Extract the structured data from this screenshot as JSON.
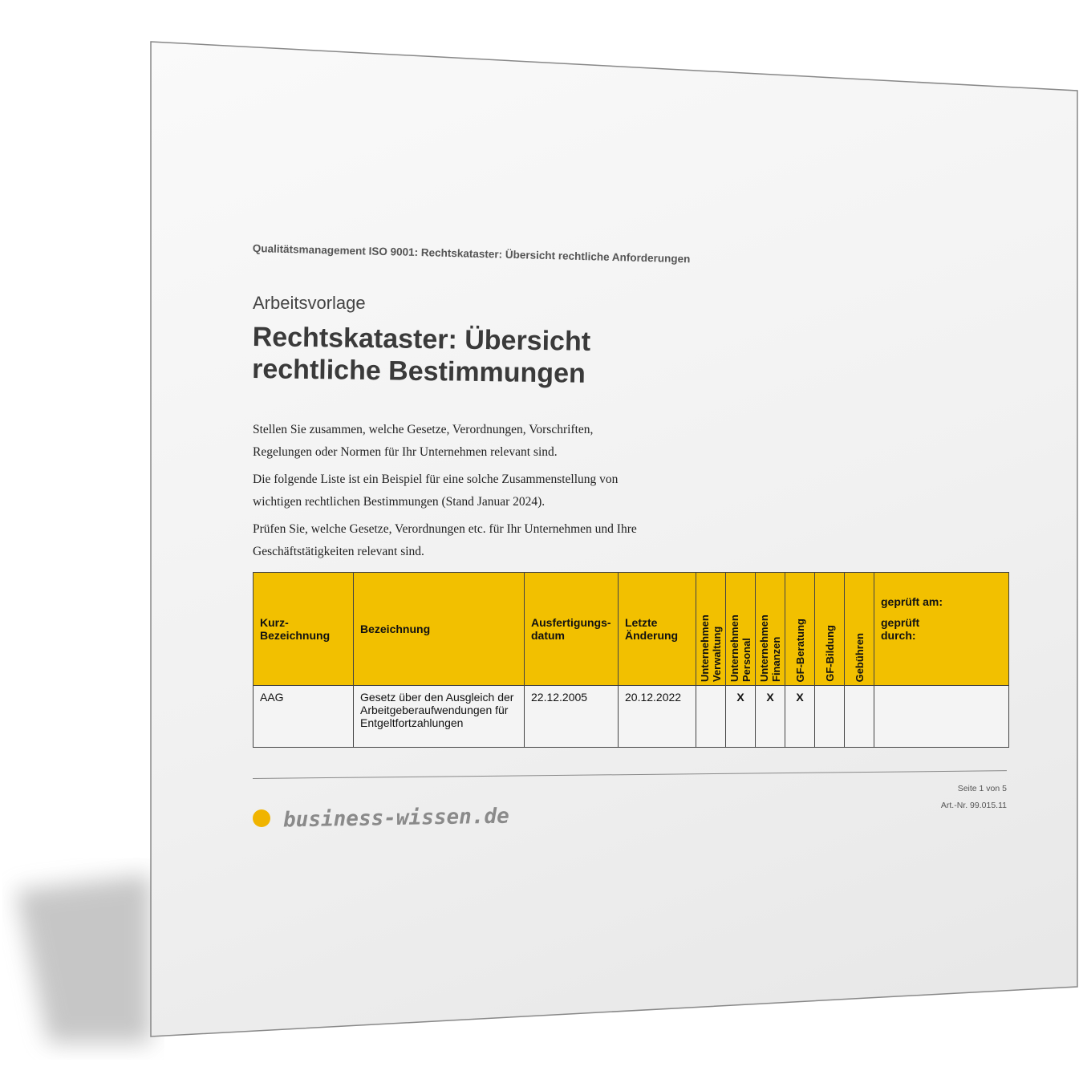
{
  "header": "Qualitätsmanagement ISO 9001: Rechtskataster: Übersicht rechtliche Anforderungen",
  "kicker": "Arbeitsvorlage",
  "title": "Rechtskataster: Übersicht rechtliche Bestimmungen",
  "paragraphs": [
    "Stellen Sie zusammen, welche Gesetze, Verordnungen, Vorschriften, Regelungen oder Normen für Ihr Unternehmen relevant sind.",
    "Die folgende Liste ist ein Beispiel für eine solche Zusammenstellung von wichtigen rechtlichen Bestimmungen (Stand Januar 2024).",
    "Prüfen Sie, welche Gesetze, Verordnungen etc. für Ihr Unternehmen und Ihre Geschäftstätigkeiten relevant sind."
  ],
  "table": {
    "headers": [
      "Kurz-Bezeichnung",
      "Bezeichnung",
      "Ausfertigungs-datum",
      "Letzte Änderung",
      "Unternehmen Verwaltung",
      "Unternehmen Personal",
      "Unternehmen Finanzen",
      "GF-Beratung",
      "GF-Bildung",
      "Gebühren"
    ],
    "check_header": {
      "line1": "geprüft am:",
      "line2": "geprüft durch:"
    },
    "rows": [
      [
        "AAG",
        "Gesetz über den Ausgleich der Arbeitgeberaufwendungen für Entgeltfortzahlungen",
        "22.12.2005",
        "20.12.2022",
        "",
        "X",
        "X",
        "X",
        "",
        "",
        ""
      ]
    ]
  },
  "footer": {
    "page": "Seite 1 von 5",
    "article": "Art.-Nr. 99.015.11",
    "logo": "business-wissen.de"
  },
  "colors": {
    "table_header": "#f2c000",
    "logo_dot": "#f0b400"
  }
}
